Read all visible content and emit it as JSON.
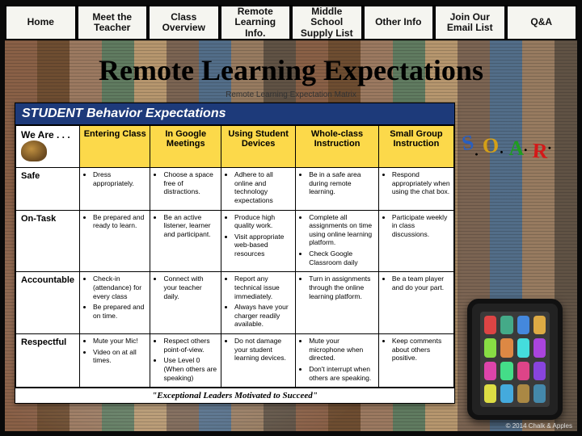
{
  "nav": {
    "items": [
      {
        "label": "Home"
      },
      {
        "label": "Meet the Teacher"
      },
      {
        "label": "Class Overview"
      },
      {
        "label": "Remote Learning Info."
      },
      {
        "label": "Middle School Supply List"
      },
      {
        "label": "Other Info"
      },
      {
        "label": "Join Our Email List"
      },
      {
        "label": "Q&A"
      }
    ]
  },
  "title": "Remote Learning Expectations",
  "matrix": {
    "caption": "Remote Learning Expectation Matrix",
    "header": "STUDENT Behavior Expectations",
    "corner": "We Are . . .",
    "columns": [
      "Entering Class",
      "In Google Meetings",
      "Using Student Devices",
      "Whole-class Instruction",
      "Small Group Instruction"
    ],
    "rows": [
      {
        "label": "Safe",
        "cells": [
          [
            "Dress appropriately."
          ],
          [
            "Choose a space free of distractions."
          ],
          [
            "Adhere to all online and technology expectations"
          ],
          [
            "Be in a safe area during remote learning."
          ],
          [
            "Respond appropriately when using the chat box."
          ]
        ]
      },
      {
        "label": "On-Task",
        "cells": [
          [
            "Be prepared and ready to learn."
          ],
          [
            "Be an active listener, learner and participant."
          ],
          [
            "Produce high quality work.",
            "Visit appropriate web-based resources"
          ],
          [
            "Complete all assignments on time using online learning platform.",
            "Check Google Classroom daily"
          ],
          [
            "Participate weekly in class discussions."
          ]
        ]
      },
      {
        "label": "Accountable",
        "cells": [
          [
            "Check-in (attendance) for every class",
            "Be prepared and on time."
          ],
          [
            "Connect with your teacher daily."
          ],
          [
            "Report any technical issue immediately.",
            "Always have your charger readily available."
          ],
          [
            "Turn in assignments through the online learning platform."
          ],
          [
            "Be a team player and do your part."
          ]
        ]
      },
      {
        "label": "Respectful",
        "cells": [
          [
            "Mute your Mic!",
            "Video on at all times."
          ],
          [
            "Respect others point-of-view.",
            "Use Level 0 (When others are speaking)"
          ],
          [
            "Do not damage your student learning devices."
          ],
          [
            "Mute your microphone when directed.",
            "Don't interrupt when others are speaking."
          ],
          [
            "Keep comments about others positive."
          ]
        ]
      }
    ],
    "quote": "\"Exceptional Leaders Motivated to Succeed\""
  },
  "soar": {
    "s": "S",
    "o": "O",
    "a": "A",
    "r": "R"
  },
  "credit": "© 2014 Chalk & Apples"
}
